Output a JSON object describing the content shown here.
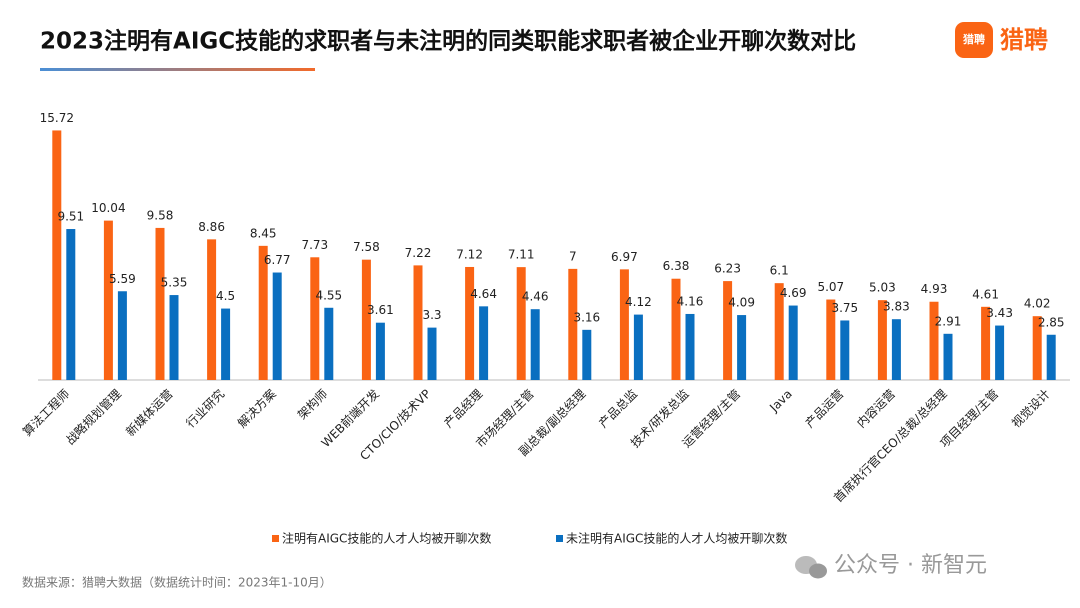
{
  "logo": "猎聘",
  "watermark": "公众号 · 新智元",
  "chart_data": {
    "type": "bar",
    "title": "2023注明有AIGC技能的求职者与未注明的同类职能求职者被企业开聊次数对比",
    "source": "数据来源：猎聘大数据（数据统计时间：2023年1-10月）",
    "categories": [
      "算法工程师",
      "战略规划管理",
      "新媒体运营",
      "行业研究",
      "解决方案",
      "架构师",
      "WEB前端开发",
      "CTO/CIO/技术VP",
      "产品经理",
      "市场经理/主管",
      "副总裁/副总经理",
      "产品总监",
      "技术/研发总监",
      "运营经理/主管",
      "Java",
      "产品运营",
      "内容运营",
      "首席执行官CEO/总裁/总经理",
      "项目经理/主管",
      "视觉设计"
    ],
    "series": [
      {
        "name": "注明有AIGC技能的人才人均被开聊次数",
        "color": "#fa6414",
        "values": [
          15.72,
          10.04,
          9.58,
          8.86,
          8.45,
          7.73,
          7.58,
          7.22,
          7.12,
          7.11,
          7,
          6.97,
          6.38,
          6.23,
          6.1,
          5.07,
          5.03,
          4.93,
          4.61,
          4.02
        ]
      },
      {
        "name": "未注明有AIGC技能的人才人均被开聊次数",
        "color": "#0a6fc0",
        "values": [
          9.51,
          5.59,
          5.35,
          4.5,
          6.77,
          4.55,
          3.61,
          3.3,
          4.64,
          4.46,
          3.16,
          4.12,
          4.16,
          4.09,
          4.69,
          3.75,
          3.83,
          2.91,
          3.43,
          2.85
        ]
      }
    ],
    "ylim": [
      0,
      16
    ]
  }
}
